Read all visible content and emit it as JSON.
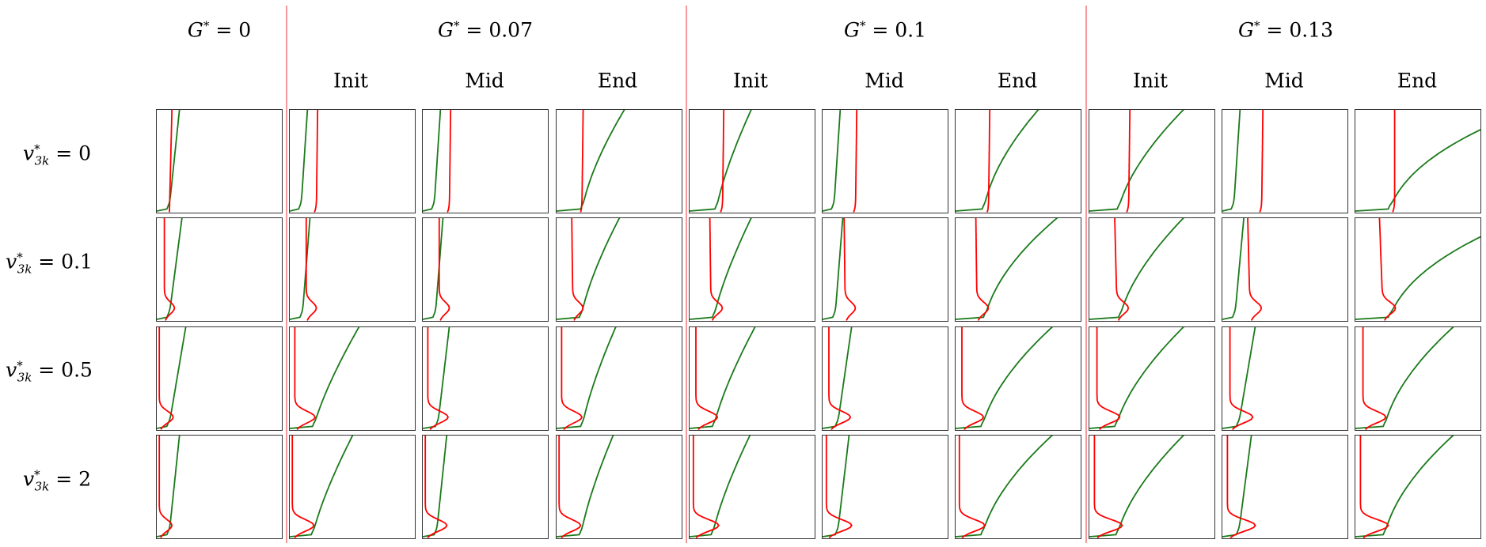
{
  "groups": [
    {
      "id": "g0",
      "label_symbol": "G",
      "label_sup": "*",
      "label_rest": " = 0"
    },
    {
      "id": "g007",
      "label_symbol": "G",
      "label_sup": "*",
      "label_rest": " = 0.07"
    },
    {
      "id": "g01",
      "label_symbol": "G",
      "label_sup": "*",
      "label_rest": " = 0.1"
    },
    {
      "id": "g013",
      "label_symbol": "G",
      "label_sup": "*",
      "label_rest": " = 0.13"
    }
  ],
  "phases": [
    "Init",
    "Mid",
    "End"
  ],
  "rows": [
    {
      "symbol": "v",
      "sup": "*",
      "sub": "3k",
      "rest": " = 0"
    },
    {
      "symbol": "v",
      "sup": "*",
      "sub": "3k",
      "rest": " = 0.1"
    },
    {
      "symbol": "v",
      "sup": "*",
      "sub": "3k",
      "rest": " = 0.5"
    },
    {
      "symbol": "v",
      "sup": "*",
      "sub": "3k",
      "rest": " = 2"
    }
  ],
  "colors": {
    "green_curve": "#1a7a1a",
    "red_curve": "#ff0000",
    "separator": "#f4999c",
    "frame": "#333333"
  },
  "chart_data": {
    "type": "line",
    "title": "",
    "xlabel": "",
    "ylabel": "",
    "grid": false,
    "axes_ticks": false,
    "layout": "4 rows x 10 panels (1 + 3 + 3 + 3 columns)",
    "panels": [
      [
        {
          "col": "G*=0",
          "green": {
            "base": 0.1,
            "top": 0.12,
            "spread": 0.06,
            "exp": 1.0,
            "foot": 0.0
          },
          "red": {
            "base": 0.1,
            "top": 0.12,
            "bulge": 0.0,
            "foot": 0.0
          }
        },
        {
          "col": "G*=0.07 Init",
          "green": {
            "base": 0.09,
            "top": 0.12,
            "spread": 0.02,
            "exp": 1.0,
            "foot": 0.0
          },
          "red": {
            "base": 0.21,
            "top": 0.22,
            "bulge": 0.0,
            "foot": 0.15
          }
        },
        {
          "col": "G*=0.07 Mid",
          "green": {
            "base": 0.09,
            "top": 0.12,
            "spread": 0.02,
            "exp": 1.0,
            "foot": 0.0
          },
          "red": {
            "base": 0.21,
            "top": 0.22,
            "bulge": 0.0,
            "foot": 0.15
          }
        },
        {
          "col": "G*=0.07 End",
          "green": {
            "base": 0.21,
            "top": 0.32,
            "spread": 0.22,
            "exp": 1.6,
            "foot": 0.0
          },
          "red": {
            "base": 0.2,
            "top": 0.21,
            "bulge": 0.0,
            "foot": 0.1
          }
        },
        {
          "col": "G*=0.1 Init",
          "green": {
            "base": 0.22,
            "top": 0.29,
            "spread": 0.2,
            "exp": 1.4,
            "foot": 0.0
          },
          "red": {
            "base": 0.26,
            "top": 0.27,
            "bulge": 0.0,
            "foot": 0.15
          }
        },
        {
          "col": "G*=0.1 Mid",
          "green": {
            "base": 0.09,
            "top": 0.12,
            "spread": 0.02,
            "exp": 1.0,
            "foot": 0.0
          },
          "red": {
            "base": 0.26,
            "top": 0.27,
            "bulge": 0.0,
            "foot": 0.15
          }
        },
        {
          "col": "G*=0.1 End",
          "green": {
            "base": 0.23,
            "top": 0.36,
            "spread": 0.3,
            "exp": 1.8,
            "foot": 0.0
          },
          "red": {
            "base": 0.26,
            "top": 0.27,
            "bulge": 0.0,
            "foot": 0.1
          }
        },
        {
          "col": "G*=0.13 Init",
          "green": {
            "base": 0.24,
            "top": 0.4,
            "spread": 0.35,
            "exp": 1.7,
            "foot": 0.0
          },
          "red": {
            "base": 0.31,
            "top": 0.32,
            "bulge": 0.0,
            "foot": 0.15
          }
        },
        {
          "col": "G*=0.13 Mid",
          "green": {
            "base": 0.09,
            "top": 0.12,
            "spread": 0.02,
            "exp": 1.0,
            "foot": 0.0
          },
          "red": {
            "base": 0.31,
            "top": 0.32,
            "bulge": 0.0,
            "foot": 0.15
          }
        },
        {
          "col": "G*=0.13 End",
          "green": {
            "base": 0.28,
            "top": 0.62,
            "spread": 0.75,
            "exp": 2.2,
            "foot": 0.0
          },
          "red": {
            "base": 0.31,
            "top": 0.31,
            "bulge": 0.0,
            "foot": 0.15
          }
        }
      ],
      [
        {
          "col": "G*=0",
          "green": {
            "base": 0.1,
            "top": 0.14,
            "spread": 0.06,
            "exp": 1.0,
            "foot": 0.0
          },
          "red": {
            "base": 0.06,
            "top": 0.06,
            "bulge": 0.08,
            "foot": 0.0
          }
        },
        {
          "col": "G*=0.07 Init",
          "green": {
            "base": 0.1,
            "top": 0.13,
            "spread": 0.03,
            "exp": 1.0,
            "foot": 0.0
          },
          "red": {
            "base": 0.13,
            "top": 0.13,
            "bulge": 0.08,
            "foot": 0.0
          }
        },
        {
          "col": "G*=0.07 Mid",
          "green": {
            "base": 0.1,
            "top": 0.13,
            "spread": 0.03,
            "exp": 1.0,
            "foot": 0.0
          },
          "red": {
            "base": 0.13,
            "top": 0.13,
            "bulge": 0.08,
            "foot": 0.0
          }
        },
        {
          "col": "G*=0.07 End",
          "green": {
            "base": 0.2,
            "top": 0.3,
            "spread": 0.2,
            "exp": 1.5,
            "foot": 0.0
          },
          "red": {
            "base": 0.13,
            "top": 0.12,
            "bulge": 0.08,
            "foot": 0.0
          }
        },
        {
          "col": "G*=0.1 Init",
          "green": {
            "base": 0.2,
            "top": 0.29,
            "spread": 0.2,
            "exp": 1.4,
            "foot": 0.0
          },
          "red": {
            "base": 0.17,
            "top": 0.16,
            "bulge": 0.09,
            "foot": 0.0
          }
        },
        {
          "col": "G*=0.1 Mid",
          "green": {
            "base": 0.1,
            "top": 0.13,
            "spread": 0.03,
            "exp": 1.0,
            "foot": 0.0
          },
          "red": {
            "base": 0.18,
            "top": 0.17,
            "bulge": 0.08,
            "foot": 0.0
          }
        },
        {
          "col": "G*=0.1 End",
          "green": {
            "base": 0.24,
            "top": 0.43,
            "spread": 0.38,
            "exp": 1.9,
            "foot": 0.0
          },
          "red": {
            "base": 0.17,
            "top": 0.16,
            "bulge": 0.09,
            "foot": 0.0
          }
        },
        {
          "col": "G*=0.13 Init",
          "green": {
            "base": 0.25,
            "top": 0.4,
            "spread": 0.35,
            "exp": 1.7,
            "foot": 0.0
          },
          "red": {
            "base": 0.22,
            "top": 0.2,
            "bulge": 0.09,
            "foot": 0.0
          }
        },
        {
          "col": "G*=0.13 Mid",
          "green": {
            "base": 0.1,
            "top": 0.14,
            "spread": 0.03,
            "exp": 1.0,
            "foot": 0.0
          },
          "red": {
            "base": 0.22,
            "top": 0.2,
            "bulge": 0.09,
            "foot": 0.0
          }
        },
        {
          "col": "G*=0.13 End",
          "green": {
            "base": 0.28,
            "top": 0.62,
            "spread": 0.72,
            "exp": 2.2,
            "foot": 0.0
          },
          "red": {
            "base": 0.22,
            "top": 0.19,
            "bulge": 0.1,
            "foot": 0.0
          }
        }
      ],
      [
        {
          "col": "G*=0",
          "green": {
            "base": 0.1,
            "top": 0.15,
            "spread": 0.08,
            "exp": 1.0,
            "foot": 0.0
          },
          "red": {
            "base": 0.02,
            "top": 0.02,
            "bulge": 0.11,
            "foot": 0.0
          }
        },
        {
          "col": "G*=0.07 Init",
          "green": {
            "base": 0.2,
            "top": 0.33,
            "spread": 0.22,
            "exp": 1.4,
            "foot": 0.0
          },
          "red": {
            "base": 0.04,
            "top": 0.04,
            "bulge": 0.16,
            "foot": 0.0
          }
        },
        {
          "col": "G*=0.07 Mid",
          "green": {
            "base": 0.12,
            "top": 0.16,
            "spread": 0.05,
            "exp": 1.0,
            "foot": 0.0
          },
          "red": {
            "base": 0.04,
            "top": 0.04,
            "bulge": 0.16,
            "foot": 0.0
          }
        },
        {
          "col": "G*=0.07 End",
          "green": {
            "base": 0.21,
            "top": 0.29,
            "spread": 0.18,
            "exp": 1.4,
            "foot": 0.0
          },
          "red": {
            "base": 0.04,
            "top": 0.04,
            "bulge": 0.16,
            "foot": 0.0
          }
        },
        {
          "col": "G*=0.1 Init",
          "green": {
            "base": 0.2,
            "top": 0.3,
            "spread": 0.22,
            "exp": 1.4,
            "foot": 0.0
          },
          "red": {
            "base": 0.05,
            "top": 0.05,
            "bulge": 0.17,
            "foot": 0.0
          }
        },
        {
          "col": "G*=0.1 Mid",
          "green": {
            "base": 0.12,
            "top": 0.17,
            "spread": 0.06,
            "exp": 1.0,
            "foot": 0.0
          },
          "red": {
            "base": 0.05,
            "top": 0.05,
            "bulge": 0.17,
            "foot": 0.0
          }
        },
        {
          "col": "G*=0.1 End",
          "green": {
            "base": 0.22,
            "top": 0.41,
            "spread": 0.36,
            "exp": 1.8,
            "foot": 0.0
          },
          "red": {
            "base": 0.05,
            "top": 0.05,
            "bulge": 0.17,
            "foot": 0.0
          }
        },
        {
          "col": "G*=0.13 Init",
          "green": {
            "base": 0.22,
            "top": 0.4,
            "spread": 0.35,
            "exp": 1.7,
            "foot": 0.0
          },
          "red": {
            "base": 0.06,
            "top": 0.06,
            "bulge": 0.18,
            "foot": 0.0
          }
        },
        {
          "col": "G*=0.13 Mid",
          "green": {
            "base": 0.13,
            "top": 0.2,
            "spread": 0.06,
            "exp": 1.0,
            "foot": 0.0
          },
          "red": {
            "base": 0.06,
            "top": 0.06,
            "bulge": 0.18,
            "foot": 0.0
          }
        },
        {
          "col": "G*=0.13 End",
          "green": {
            "base": 0.24,
            "top": 0.4,
            "spread": 0.38,
            "exp": 1.8,
            "foot": 0.0
          },
          "red": {
            "base": 0.06,
            "top": 0.06,
            "bulge": 0.18,
            "foot": 0.0
          }
        }
      ],
      [
        {
          "col": "G*=0",
          "green": {
            "base": 0.1,
            "top": 0.12,
            "spread": 0.06,
            "exp": 1.0,
            "foot": 0.0
          },
          "red": {
            "base": 0.02,
            "top": 0.02,
            "bulge": 0.1,
            "foot": 0.0
          }
        },
        {
          "col": "G*=0.07 Init",
          "green": {
            "base": 0.19,
            "top": 0.3,
            "spread": 0.2,
            "exp": 1.4,
            "foot": 0.0
          },
          "red": {
            "base": 0.02,
            "top": 0.02,
            "bulge": 0.17,
            "foot": 0.0
          }
        },
        {
          "col": "G*=0.07 Mid",
          "green": {
            "base": 0.11,
            "top": 0.15,
            "spread": 0.04,
            "exp": 1.0,
            "foot": 0.0
          },
          "red": {
            "base": 0.02,
            "top": 0.02,
            "bulge": 0.17,
            "foot": 0.0
          }
        },
        {
          "col": "G*=0.07 End",
          "green": {
            "base": 0.2,
            "top": 0.27,
            "spread": 0.18,
            "exp": 1.4,
            "foot": 0.0
          },
          "red": {
            "base": 0.02,
            "top": 0.02,
            "bulge": 0.17,
            "foot": 0.0
          }
        },
        {
          "col": "G*=0.1 Init",
          "green": {
            "base": 0.19,
            "top": 0.28,
            "spread": 0.2,
            "exp": 1.4,
            "foot": 0.0
          },
          "red": {
            "base": 0.03,
            "top": 0.03,
            "bulge": 0.2,
            "foot": 0.0
          }
        },
        {
          "col": "G*=0.1 Mid",
          "green": {
            "base": 0.12,
            "top": 0.16,
            "spread": 0.05,
            "exp": 1.0,
            "foot": 0.0
          },
          "red": {
            "base": 0.03,
            "top": 0.03,
            "bulge": 0.2,
            "foot": 0.0
          }
        },
        {
          "col": "G*=0.1 End",
          "green": {
            "base": 0.22,
            "top": 0.41,
            "spread": 0.36,
            "exp": 1.8,
            "foot": 0.0
          },
          "red": {
            "base": 0.03,
            "top": 0.03,
            "bulge": 0.2,
            "foot": 0.0
          }
        },
        {
          "col": "G*=0.13 Init",
          "green": {
            "base": 0.23,
            "top": 0.4,
            "spread": 0.35,
            "exp": 1.7,
            "foot": 0.0
          },
          "red": {
            "base": 0.04,
            "top": 0.04,
            "bulge": 0.22,
            "foot": 0.0
          }
        },
        {
          "col": "G*=0.13 Mid",
          "green": {
            "base": 0.13,
            "top": 0.18,
            "spread": 0.05,
            "exp": 1.0,
            "foot": 0.0
          },
          "red": {
            "base": 0.04,
            "top": 0.04,
            "bulge": 0.22,
            "foot": 0.0
          }
        },
        {
          "col": "G*=0.13 End",
          "green": {
            "base": 0.24,
            "top": 0.4,
            "spread": 0.38,
            "exp": 1.8,
            "foot": 0.0
          },
          "red": {
            "base": 0.04,
            "top": 0.04,
            "bulge": 0.22,
            "foot": 0.0
          }
        }
      ]
    ]
  }
}
